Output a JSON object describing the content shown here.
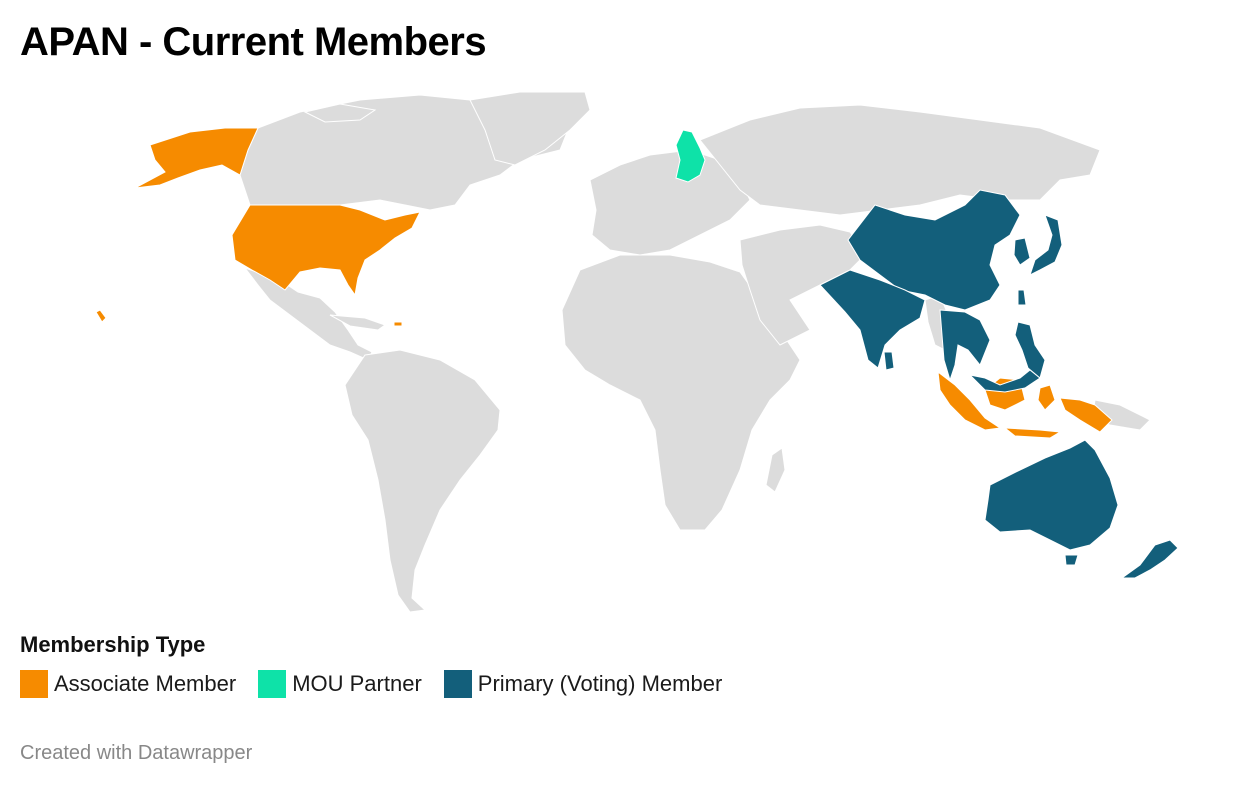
{
  "title": "APAN - Current Members",
  "legend": {
    "title": "Membership Type",
    "items": [
      {
        "label": "Associate Member",
        "color": "#f68b00"
      },
      {
        "label": "MOU Partner",
        "color": "#0ee2a8"
      },
      {
        "label": "Primary (Voting) Member",
        "color": "#135f7b"
      }
    ]
  },
  "credit": "Created with Datawrapper",
  "colors": {
    "land": "#dcdcdc",
    "border": "#ffffff"
  },
  "members": {
    "associate": [
      "United States",
      "Indonesia"
    ],
    "mou_partner": [
      "Finland"
    ],
    "primary": [
      "China",
      "India",
      "Japan",
      "South Korea",
      "Thailand",
      "Vietnam",
      "Malaysia",
      "Philippines",
      "Taiwan",
      "Australia",
      "New Zealand",
      "Bangladesh",
      "Sri Lanka",
      "Pakistan",
      "Nepal",
      "Laos",
      "Singapore"
    ]
  }
}
